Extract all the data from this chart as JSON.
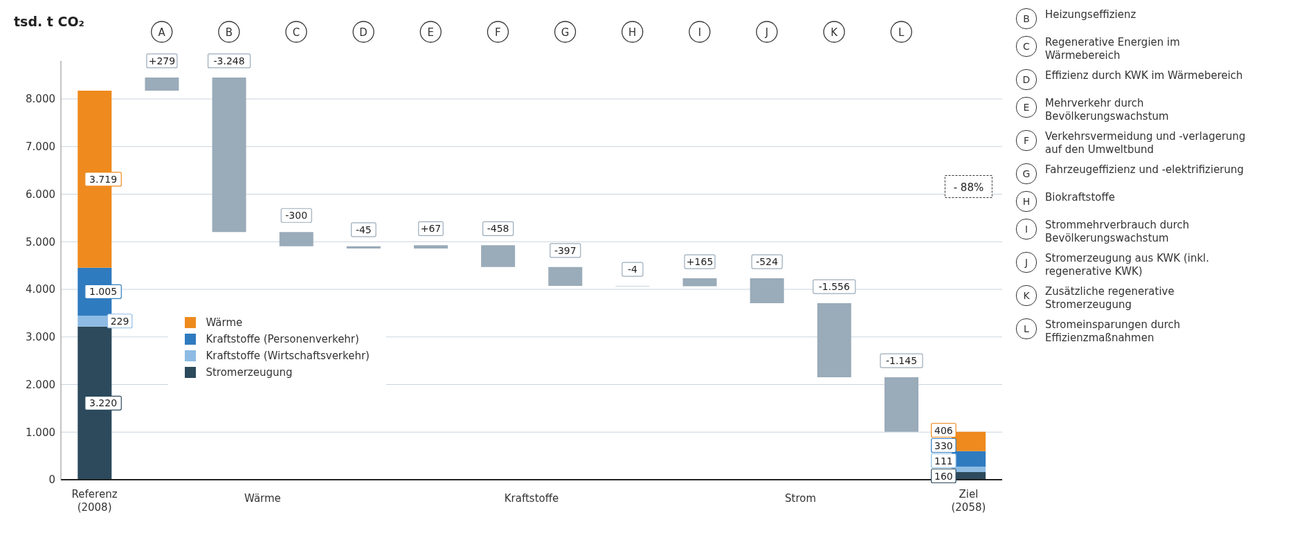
{
  "chart_data": {
    "type": "bar",
    "ylabel": "tsd. t CO₂",
    "categories": [
      "Referenz (2008)",
      "A",
      "B",
      "C",
      "D",
      "E",
      "F",
      "G",
      "H",
      "I",
      "J",
      "K",
      "L",
      "Ziel (2058)"
    ],
    "stacked": true,
    "series": [
      {
        "name": "Stromerzeugung",
        "color": "#2c4a5c",
        "values": [
          3220,
          null,
          null,
          null,
          null,
          null,
          null,
          null,
          null,
          null,
          null,
          null,
          null,
          160
        ],
        "value_labels": [
          "3.220",
          null,
          null,
          null,
          null,
          null,
          null,
          null,
          null,
          null,
          null,
          null,
          null,
          "160"
        ]
      },
      {
        "name": "Kraftstoffe (Wirtschaftsverkehr)",
        "color": "#8dbbe3",
        "values": [
          229,
          null,
          null,
          null,
          null,
          null,
          null,
          null,
          null,
          null,
          null,
          null,
          null,
          111
        ],
        "value_labels": [
          "229",
          null,
          null,
          null,
          null,
          null,
          null,
          null,
          null,
          null,
          null,
          null,
          null,
          "111"
        ]
      },
      {
        "name": "Kraftstoffe (Personenverkehr)",
        "color": "#2f7bbf",
        "values": [
          1005,
          null,
          null,
          null,
          null,
          null,
          null,
          null,
          null,
          null,
          null,
          null,
          null,
          330
        ],
        "value_labels": [
          "1.005",
          null,
          null,
          null,
          null,
          null,
          null,
          null,
          null,
          null,
          null,
          null,
          null,
          "330"
        ]
      },
      {
        "name": "Wärme",
        "color": "#ee8a1e",
        "values": [
          3719,
          null,
          null,
          null,
          null,
          null,
          null,
          null,
          null,
          null,
          null,
          null,
          null,
          406
        ],
        "value_labels": [
          "3.719",
          null,
          null,
          null,
          null,
          null,
          null,
          null,
          null,
          null,
          null,
          null,
          null,
          "406"
        ]
      },
      {
        "type": "bar",
        "color": "#9aabb9",
        "values": [
          null,
          279,
          -3248,
          -300,
          -45,
          67,
          -458,
          -397,
          -4,
          165,
          -524,
          -1556,
          -1145,
          null
        ],
        "base": [
          null,
          8173,
          8452,
          5204,
          4904,
          4859,
          4926,
          4468,
          4071,
          4067,
          4232,
          3708,
          2152,
          null
        ],
        "value_labels": [
          null,
          "+279",
          "-3.248",
          "-300",
          "-45",
          "+67",
          "-458",
          "-397",
          "-4",
          "+165",
          "-524",
          "-1.556",
          "-1.145",
          null
        ]
      }
    ],
    "ylim": [
      0,
      8800
    ],
    "yticks": [
      0,
      {
        "value": 1000,
        "label": "1.000"
      },
      {
        "value": 2000,
        "label": "2.000"
      },
      {
        "value": 3000,
        "label": "3.000"
      },
      {
        "value": 4000,
        "label": "4.000"
      },
      {
        "value": 5000,
        "label": "5.000"
      },
      {
        "value": 6000,
        "label": "6.000"
      },
      {
        "value": 7000,
        "label": "7.000"
      },
      {
        "value": 8000,
        "label": "8.000"
      }
    ],
    "grid": "y",
    "legend": "bottom left",
    "annotations": [
      "Wärme",
      "Kraftstoffe",
      "Strom",
      "- 88%",
      "B Heizungseffizienz",
      "C Regenerative Energien im Wärmebereich",
      "D Effizienz durch KWK im Wärmebereich",
      "E Mehrverkehr durch Bevölkerungswachstum",
      "F Verkehrsvermeidung und -verlagerung auf den Umweltbund",
      "G Fahrzeugeffizienz und -elektrifizierung",
      "H Biokraftstoffe",
      "I Strommehrverbrauch durch Bevölkerungswachstum",
      "J Stromerzeugung aus KWK (inkl. regenerative KWK)",
      "K Zusätzliche regenerative Stromerzeugung",
      "L Stromeinsparungen durch Effizienzmaßnahmen"
    ]
  }
}
